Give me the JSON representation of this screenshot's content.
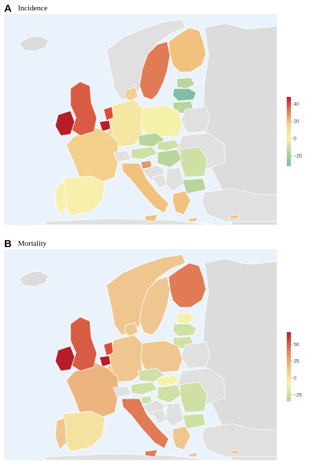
{
  "panels": [
    {
      "id": "incidence",
      "label": "A",
      "title": "Incidence",
      "legend": {
        "colors": [
          "#b81d2a",
          "#e27a58",
          "#f6d38d",
          "#f6f3b0",
          "#b6d59b",
          "#7fbf9f"
        ],
        "ticks": [
          {
            "value": 40,
            "label": "40"
          },
          {
            "value": 20,
            "label": "20"
          },
          {
            "value": 0,
            "label": "0"
          },
          {
            "value": -20,
            "label": "−20"
          }
        ],
        "range": [
          -32,
          48
        ]
      },
      "regions": [
        {
          "name": "Ireland",
          "color": "#b81d2a"
        },
        {
          "name": "United Kingdom",
          "color": "#d85c44"
        },
        {
          "name": "Iceland",
          "color": "#dcdcdc"
        },
        {
          "name": "Norway",
          "color": "#e0e0e0"
        },
        {
          "name": "Sweden",
          "color": "#e07b55"
        },
        {
          "name": "Finland",
          "color": "#f0c27e"
        },
        {
          "name": "Russia",
          "color": "#dcdcdc"
        },
        {
          "name": "Estonia",
          "color": "#b7d59c"
        },
        {
          "name": "Latvia",
          "color": "#80bfa1"
        },
        {
          "name": "Lithuania",
          "color": "#b7d59c"
        },
        {
          "name": "Belarus",
          "color": "#e0e0e0"
        },
        {
          "name": "Ukraine",
          "color": "#e0e0e0"
        },
        {
          "name": "Poland",
          "color": "#f6f1a9"
        },
        {
          "name": "Germany",
          "color": "#f6e6a4"
        },
        {
          "name": "Denmark",
          "color": "#f3cf8c"
        },
        {
          "name": "Netherlands",
          "color": "#d94e3b"
        },
        {
          "name": "Belgium",
          "color": "#b81d2a"
        },
        {
          "name": "Luxembourg",
          "color": "#f3cf8c"
        },
        {
          "name": "France",
          "color": "#f3cf8c"
        },
        {
          "name": "Switzerland",
          "color": "#e0e0e0"
        },
        {
          "name": "Austria",
          "color": "#cfe0a7"
        },
        {
          "name": "Czechia",
          "color": "#b7d59c"
        },
        {
          "name": "Slovakia",
          "color": "#cfe0a7"
        },
        {
          "name": "Hungary",
          "color": "#b7d59c"
        },
        {
          "name": "Slovenia",
          "color": "#e6946a"
        },
        {
          "name": "Croatia",
          "color": "#e0e0e0"
        },
        {
          "name": "Bosnia and Herzegovina",
          "color": "#e0e0e0"
        },
        {
          "name": "Serbia",
          "color": "#e0e0e0"
        },
        {
          "name": "Romania",
          "color": "#cfe0a7"
        },
        {
          "name": "Bulgaria",
          "color": "#b7d59c"
        },
        {
          "name": "Italy",
          "color": "#f0c27e"
        },
        {
          "name": "Spain",
          "color": "#f6f0ac"
        },
        {
          "name": "Portugal",
          "color": "#f6f0ac"
        },
        {
          "name": "Greece",
          "color": "#f0c27e"
        },
        {
          "name": "Turkey",
          "color": "#e0e0e0"
        },
        {
          "name": "North Africa",
          "color": "#e0e0e0"
        },
        {
          "name": "Cyprus",
          "color": "#f0c27e"
        },
        {
          "name": "Malta",
          "color": "#f0c27e"
        }
      ]
    },
    {
      "id": "mortality",
      "label": "B",
      "title": "Mortality",
      "legend": {
        "colors": [
          "#b81d2a",
          "#e27a58",
          "#f0c27e",
          "#f6f3b0",
          "#b6d59b"
        ],
        "ticks": [
          {
            "value": 50,
            "label": "50"
          },
          {
            "value": 25,
            "label": "25"
          },
          {
            "value": 0,
            "label": "0"
          },
          {
            "value": -25,
            "label": "−25"
          }
        ],
        "range": [
          -35,
          68
        ]
      },
      "regions": [
        {
          "name": "Ireland",
          "color": "#b81d2a"
        },
        {
          "name": "United Kingdom",
          "color": "#d85c44"
        },
        {
          "name": "Iceland",
          "color": "#dcdcdc"
        },
        {
          "name": "Norway",
          "color": "#f0c690"
        },
        {
          "name": "Sweden",
          "color": "#f0c690"
        },
        {
          "name": "Finland",
          "color": "#e07b55"
        },
        {
          "name": "Russia",
          "color": "#dcdcdc"
        },
        {
          "name": "Estonia",
          "color": "#f6f1a9"
        },
        {
          "name": "Latvia",
          "color": "#cfe0a7"
        },
        {
          "name": "Lithuania",
          "color": "#cfe0a7"
        },
        {
          "name": "Belarus",
          "color": "#e0e0e0"
        },
        {
          "name": "Ukraine",
          "color": "#e0e0e0"
        },
        {
          "name": "Poland",
          "color": "#f0c690"
        },
        {
          "name": "Germany",
          "color": "#f0c690"
        },
        {
          "name": "Denmark",
          "color": "#f0c690"
        },
        {
          "name": "Netherlands",
          "color": "#d94e3b"
        },
        {
          "name": "Belgium",
          "color": "#b81d2a"
        },
        {
          "name": "Luxembourg",
          "color": "#f0c690"
        },
        {
          "name": "France",
          "color": "#ecb580"
        },
        {
          "name": "Switzerland",
          "color": "#e0e0e0"
        },
        {
          "name": "Austria",
          "color": "#cfe0a7"
        },
        {
          "name": "Czechia",
          "color": "#cfe0a7"
        },
        {
          "name": "Slovakia",
          "color": "#f6f1a9"
        },
        {
          "name": "Hungary",
          "color": "#cfe0a7"
        },
        {
          "name": "Slovenia",
          "color": "#cfe0a7"
        },
        {
          "name": "Croatia",
          "color": "#e0e0e0"
        },
        {
          "name": "Bosnia and Herzegovina",
          "color": "#e0e0e0"
        },
        {
          "name": "Serbia",
          "color": "#e0e0e0"
        },
        {
          "name": "Romania",
          "color": "#cfe0a7"
        },
        {
          "name": "Bulgaria",
          "color": "#cfe0a7"
        },
        {
          "name": "Italy",
          "color": "#e07b55"
        },
        {
          "name": "Spain",
          "color": "#f6e2a0"
        },
        {
          "name": "Portugal",
          "color": "#f0c690"
        },
        {
          "name": "Greece",
          "color": "#f0c690"
        },
        {
          "name": "Turkey",
          "color": "#e0e0e0"
        },
        {
          "name": "North Africa",
          "color": "#e0e0e0"
        },
        {
          "name": "Cyprus",
          "color": "#f0c690"
        },
        {
          "name": "Malta",
          "color": "#f0c690"
        }
      ]
    }
  ]
}
